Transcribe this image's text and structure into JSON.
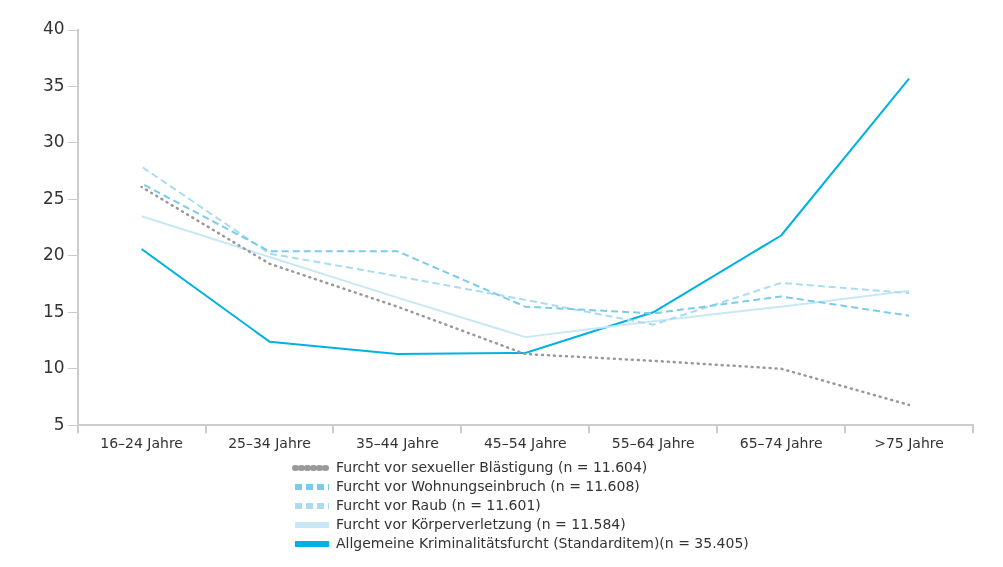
{
  "chart_data": {
    "type": "line",
    "categories": [
      "16–24 Jahre",
      "25–34 Jahre",
      "35–44 Jahre",
      "45–54 Jahre",
      "55–64 Jahre",
      "65–74 Jahre",
      ">75 Jahre"
    ],
    "ylim": [
      5,
      40
    ],
    "yticks": [
      5,
      10,
      15,
      20,
      25,
      30,
      35,
      40
    ],
    "grid": false,
    "legend": "bottom",
    "marker": "none",
    "series": [
      {
        "name": "Furcht vor sexueller Blästigung (n = 11.604)",
        "color": "#999999",
        "line_style": "dotted",
        "values": [
          26.1,
          19.3,
          15.5,
          11.3,
          10.7,
          10.0,
          6.8
        ]
      },
      {
        "name": "Furcht vor Wohnungseinbruch (n = 11.608)",
        "color": "#7ccbea",
        "line_style": "dashed",
        "values": [
          26.4,
          20.4,
          20.4,
          15.5,
          14.9,
          16.4,
          14.7
        ]
      },
      {
        "name": "Furcht vor Raub (n = 11.601)",
        "color": "#a9dcf1",
        "line_style": "dashed",
        "values": [
          27.9,
          20.2,
          18.2,
          16.1,
          13.9,
          17.6,
          16.7
        ]
      },
      {
        "name": "Furcht vor Körperverletzung (n = 11.584)",
        "color": "#c8e8f6",
        "line_style": "solid",
        "values": [
          23.5,
          19.9,
          16.3,
          12.8,
          14.2,
          15.5,
          16.9
        ]
      },
      {
        "name": "Allgemeine Kriminalitätsfurcht (Standarditem)(n = 35.405)",
        "color": "#00b2e2",
        "line_style": "solid",
        "values": [
          20.6,
          12.4,
          11.3,
          11.4,
          15.0,
          21.8,
          35.7
        ]
      }
    ]
  }
}
